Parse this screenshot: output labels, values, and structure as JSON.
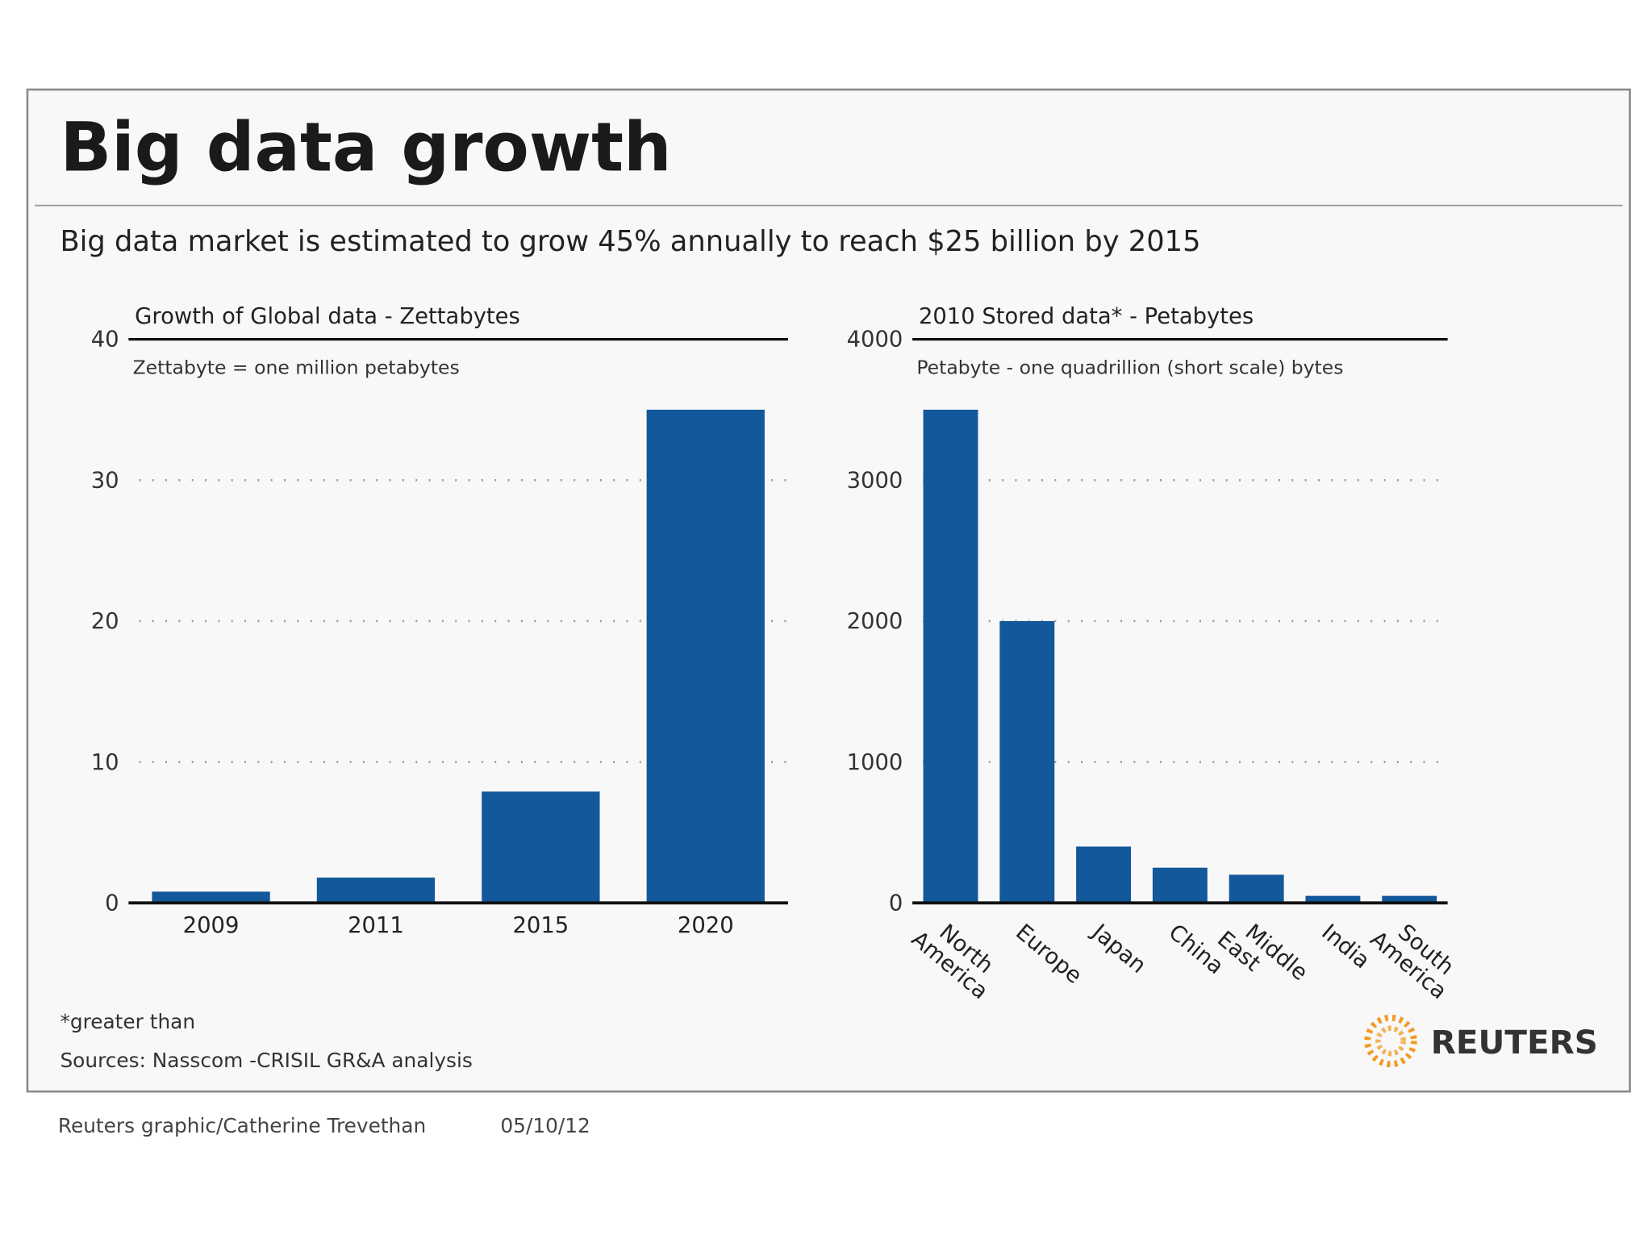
{
  "header": {
    "title": "Big data growth",
    "subtitle": "Big data market is estimated to grow 45% annually to reach $25 billion by 2015"
  },
  "chart_data": [
    {
      "type": "bar",
      "title": "Growth of Global data - Zettabytes",
      "note": "Zettabyte = one million petabytes",
      "categories": [
        "2009",
        "2011",
        "2015",
        "2020"
      ],
      "values": [
        0.8,
        1.8,
        7.9,
        35
      ],
      "color": "#12589a",
      "ylim": [
        0,
        40
      ],
      "yticks": [
        0,
        10,
        20,
        30,
        40
      ],
      "grid": true
    },
    {
      "type": "bar",
      "title": "2010 Stored data* - Petabytes",
      "note": "Petabyte - one quadrillion (short scale) bytes",
      "categories": [
        "North America",
        "Europe",
        "Japan",
        "China",
        "Middle East",
        "India",
        "South America"
      ],
      "values": [
        3500,
        2000,
        400,
        250,
        200,
        50,
        50
      ],
      "color": "#12589a",
      "ylim": [
        0,
        4000
      ],
      "yticks": [
        0,
        1000,
        2000,
        3000,
        4000
      ],
      "grid": true
    }
  ],
  "footer": {
    "footnote": "*greater than",
    "source": "Sources: Nasscom -CRISIL GR&A analysis",
    "logo": "REUTERS",
    "credit": "Reuters graphic/Catherine Trevethan",
    "date": "05/10/12"
  }
}
